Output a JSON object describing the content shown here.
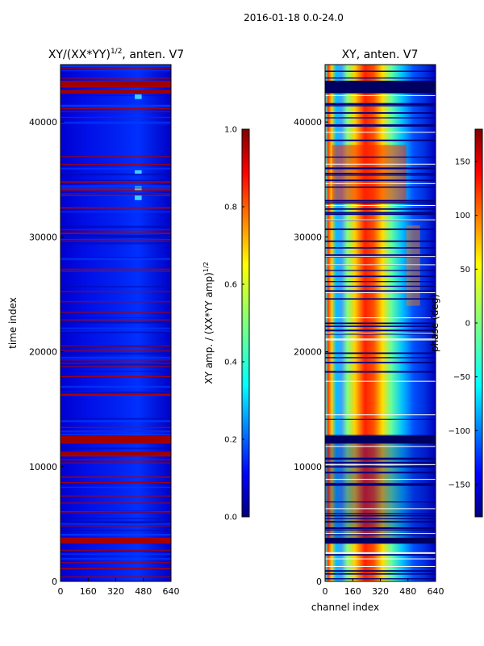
{
  "suptitle": "2016-01-18 0.0-24.0",
  "chart_data": [
    {
      "type": "heatmap",
      "title_prefix": "XY/(XX*YY)",
      "title_exponent": "1/2",
      "title_suffix": ", anten. V7",
      "xlabel": "",
      "ylabel": "time index",
      "xlim": [
        0,
        640
      ],
      "ylim": [
        0,
        45000
      ],
      "xticks": [
        0,
        160,
        320,
        480,
        640
      ],
      "yticks": [
        0,
        10000,
        20000,
        30000,
        40000
      ],
      "colormap": "jet",
      "colorbar": {
        "label_prefix": "XY amp. / (XX*YY amp)",
        "label_exponent": "1/2",
        "range": [
          0.0,
          1.0
        ],
        "ticks": [
          "0.0",
          "0.2",
          "0.4",
          "0.6",
          "0.8",
          "1.0"
        ]
      },
      "dominant_value": 0.12,
      "flagged_bands_time_index": [
        [
          43000,
          43600
        ],
        [
          42500,
          42800
        ],
        [
          12000,
          12700
        ],
        [
          10900,
          11300
        ],
        [
          3300,
          3800
        ]
      ]
    },
    {
      "type": "heatmap",
      "title": "XY, anten. V7",
      "xlabel": "channel index",
      "ylabel": "",
      "xlim": [
        0,
        640
      ],
      "ylim": [
        0,
        45000
      ],
      "xticks": [
        0,
        160,
        320,
        480,
        640
      ],
      "yticks": [
        0,
        10000,
        20000,
        30000,
        40000
      ],
      "colormap": "jet",
      "colorbar": {
        "label": "phase (deg)",
        "range": [
          -180,
          180
        ],
        "ticks": [
          "150",
          "100",
          "50",
          "0",
          "−50",
          "−100",
          "−150"
        ],
        "tick_values": [
          150,
          100,
          50,
          0,
          -50,
          -100,
          -150
        ]
      },
      "phase_profile_channels": [
        0,
        40,
        80,
        120,
        160,
        200,
        240,
        280,
        320,
        360,
        400,
        440,
        480,
        520,
        560,
        600,
        640
      ],
      "phase_profile_deg": [
        -150,
        60,
        20,
        -80,
        -20,
        10,
        120,
        160,
        150,
        40,
        -20,
        -60,
        -100,
        -120,
        -90,
        -110,
        -140
      ]
    }
  ]
}
